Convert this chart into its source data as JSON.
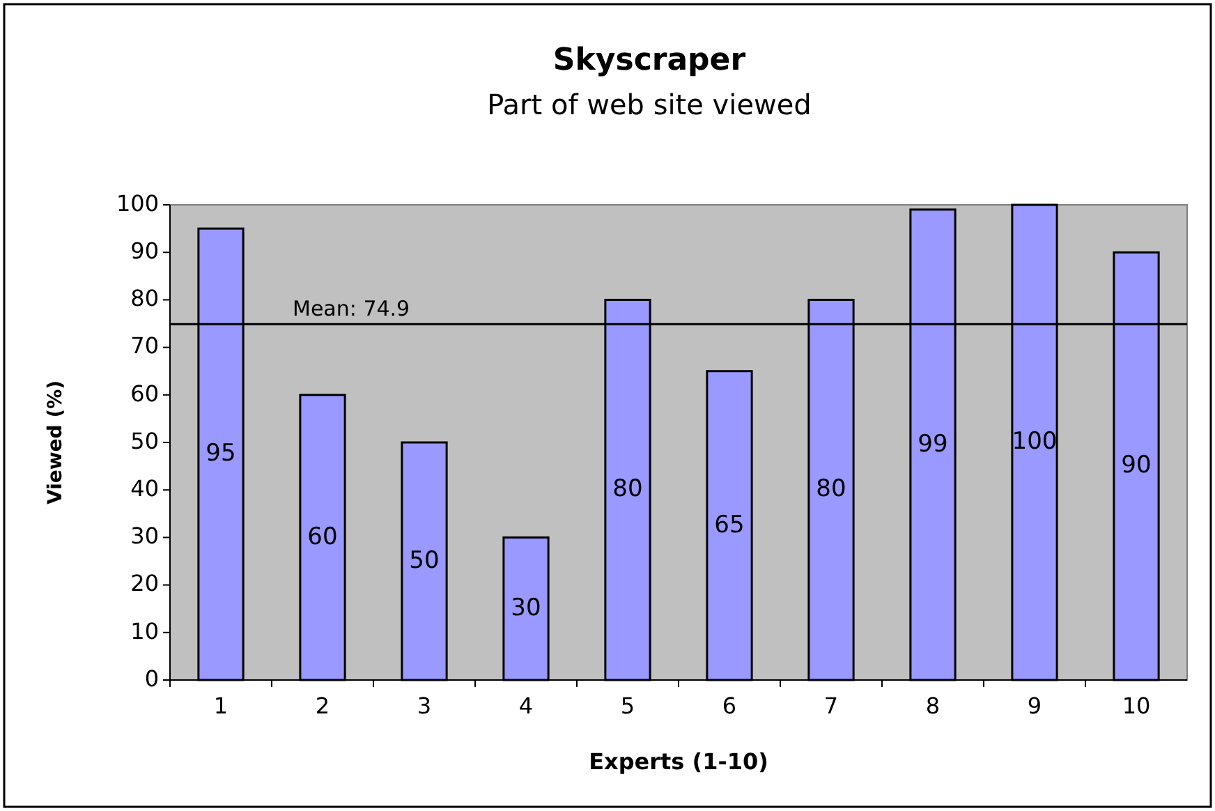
{
  "chart_data": {
    "type": "bar",
    "title": "Skyscraper",
    "subtitle": "Part of web site viewed",
    "xlabel": "Experts (1-10)",
    "ylabel": "Viewed (%)",
    "categories": [
      "1",
      "2",
      "3",
      "4",
      "5",
      "6",
      "7",
      "8",
      "9",
      "10"
    ],
    "values": [
      95,
      60,
      50,
      30,
      80,
      65,
      80,
      99,
      100,
      90
    ],
    "color": "#9999ff",
    "ylim": [
      0,
      100
    ],
    "yticks": [
      0,
      10,
      20,
      30,
      40,
      50,
      60,
      70,
      80,
      90,
      100
    ],
    "data_labels": true,
    "ref_lines": [
      {
        "axis": "y",
        "value": 74.9,
        "label": "Mean: 74.9",
        "color": "#000000"
      }
    ]
  }
}
